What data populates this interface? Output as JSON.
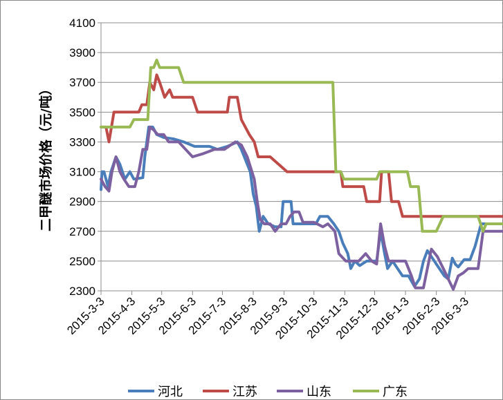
{
  "chart_data": {
    "type": "line",
    "title": "",
    "xlabel": "",
    "ylabel": "二甲醚市场价格（元/吨）",
    "ylim": [
      2300,
      4100
    ],
    "yticks": [
      2300,
      2500,
      2700,
      2900,
      3100,
      3300,
      3500,
      3700,
      3900,
      4100
    ],
    "xlim": [
      "2015-03-03",
      "2016-04-10"
    ],
    "xtick_labels": [
      "2015-3-3",
      "2015-4-3",
      "2015-5-3",
      "2015-6-3",
      "2015-7-3",
      "2015-8-3",
      "2015-9-3",
      "2015-10-3",
      "2015-11-3",
      "2015-12-3",
      "2016-1-3",
      "2016-2-3",
      "2016-3-3"
    ],
    "xtick_dates": [
      "2015-03-03",
      "2015-04-03",
      "2015-05-03",
      "2015-06-03",
      "2015-07-03",
      "2015-08-03",
      "2015-09-03",
      "2015-10-03",
      "2015-11-03",
      "2015-12-03",
      "2016-01-03",
      "2016-02-03",
      "2016-03-03"
    ],
    "grid": "horizontal",
    "legend_position": "bottom",
    "series": [
      {
        "name": "河北",
        "color": "#4a7ebb",
        "points": [
          [
            "2015-03-03",
            2980
          ],
          [
            "2015-03-04",
            3100
          ],
          [
            "2015-03-06",
            3100
          ],
          [
            "2015-03-10",
            3000
          ],
          [
            "2015-03-13",
            3100
          ],
          [
            "2015-03-18",
            3200
          ],
          [
            "2015-03-22",
            3150
          ],
          [
            "2015-03-27",
            3050
          ],
          [
            "2015-04-01",
            3100
          ],
          [
            "2015-04-05",
            3050
          ],
          [
            "2015-04-14",
            3060
          ],
          [
            "2015-04-16",
            3200
          ],
          [
            "2015-04-20",
            3400
          ],
          [
            "2015-04-24",
            3400
          ],
          [
            "2015-04-28",
            3350
          ],
          [
            "2015-05-05",
            3330
          ],
          [
            "2015-05-15",
            3320
          ],
          [
            "2015-05-25",
            3300
          ],
          [
            "2015-06-05",
            3270
          ],
          [
            "2015-06-20",
            3270
          ],
          [
            "2015-06-28",
            3250
          ],
          [
            "2015-07-08",
            3270
          ],
          [
            "2015-07-18",
            3300
          ],
          [
            "2015-07-22",
            3250
          ],
          [
            "2015-07-25",
            3200
          ],
          [
            "2015-07-31",
            3100
          ],
          [
            "2015-08-03",
            2950
          ],
          [
            "2015-08-06",
            2870
          ],
          [
            "2015-08-09",
            2700
          ],
          [
            "2015-08-13",
            2800
          ],
          [
            "2015-08-18",
            2750
          ],
          [
            "2015-08-25",
            2730
          ],
          [
            "2015-08-31",
            2730
          ],
          [
            "2015-09-02",
            2900
          ],
          [
            "2015-09-10",
            2900
          ],
          [
            "2015-09-12",
            2750
          ],
          [
            "2015-09-25",
            2750
          ],
          [
            "2015-10-05",
            2750
          ],
          [
            "2015-10-09",
            2800
          ],
          [
            "2015-10-17",
            2800
          ],
          [
            "2015-10-23",
            2750
          ],
          [
            "2015-10-28",
            2700
          ],
          [
            "2015-11-01",
            2620
          ],
          [
            "2015-11-06",
            2550
          ],
          [
            "2015-11-09",
            2450
          ],
          [
            "2015-11-13",
            2500
          ],
          [
            "2015-11-18",
            2470
          ],
          [
            "2015-11-25",
            2500
          ],
          [
            "2015-12-05",
            2500
          ],
          [
            "2015-12-09",
            2700
          ],
          [
            "2015-12-13",
            2550
          ],
          [
            "2015-12-16",
            2450
          ],
          [
            "2015-12-21",
            2500
          ],
          [
            "2015-12-26",
            2450
          ],
          [
            "2015-12-31",
            2400
          ],
          [
            "2016-01-06",
            2400
          ],
          [
            "2016-01-12",
            2330
          ],
          [
            "2016-01-17",
            2380
          ],
          [
            "2016-01-21",
            2500
          ],
          [
            "2016-01-25",
            2570
          ],
          [
            "2016-01-31",
            2510
          ],
          [
            "2016-02-05",
            2460
          ],
          [
            "2016-02-11",
            2400
          ],
          [
            "2016-02-15",
            2380
          ],
          [
            "2016-02-19",
            2520
          ],
          [
            "2016-02-22",
            2480
          ],
          [
            "2016-02-25",
            2460
          ],
          [
            "2016-03-02",
            2510
          ],
          [
            "2016-03-08",
            2510
          ],
          [
            "2016-03-13",
            2600
          ],
          [
            "2016-03-19",
            2750
          ],
          [
            "2016-04-10",
            2750
          ]
        ]
      },
      {
        "name": "江苏",
        "color": "#be4b48",
        "points": [
          [
            "2015-03-03",
            3400
          ],
          [
            "2015-03-08",
            3400
          ],
          [
            "2015-03-11",
            3300
          ],
          [
            "2015-03-16",
            3500
          ],
          [
            "2015-04-10",
            3500
          ],
          [
            "2015-04-13",
            3550
          ],
          [
            "2015-04-18",
            3550
          ],
          [
            "2015-04-21",
            3700
          ],
          [
            "2015-04-25",
            3650
          ],
          [
            "2015-04-28",
            3750
          ],
          [
            "2015-05-01",
            3700
          ],
          [
            "2015-05-06",
            3600
          ],
          [
            "2015-05-11",
            3650
          ],
          [
            "2015-05-14",
            3600
          ],
          [
            "2015-06-03",
            3600
          ],
          [
            "2015-06-08",
            3500
          ],
          [
            "2015-06-25",
            3500
          ],
          [
            "2015-07-08",
            3500
          ],
          [
            "2015-07-10",
            3600
          ],
          [
            "2015-07-18",
            3600
          ],
          [
            "2015-07-22",
            3450
          ],
          [
            "2015-07-30",
            3350
          ],
          [
            "2015-08-04",
            3300
          ],
          [
            "2015-08-08",
            3200
          ],
          [
            "2015-08-20",
            3200
          ],
          [
            "2015-09-06",
            3100
          ],
          [
            "2015-10-30",
            3100
          ],
          [
            "2015-11-01",
            3000
          ],
          [
            "2015-11-22",
            3000
          ],
          [
            "2015-11-25",
            2900
          ],
          [
            "2015-12-08",
            2900
          ],
          [
            "2015-12-10",
            3100
          ],
          [
            "2015-12-17",
            3100
          ],
          [
            "2015-12-20",
            2900
          ],
          [
            "2015-12-27",
            2900
          ],
          [
            "2015-12-31",
            2800
          ],
          [
            "2016-04-10",
            2800
          ]
        ]
      },
      {
        "name": "山东",
        "color": "#7d60a0",
        "points": [
          [
            "2015-03-03",
            3050
          ],
          [
            "2015-03-07",
            3000
          ],
          [
            "2015-03-11",
            2970
          ],
          [
            "2015-03-14",
            3100
          ],
          [
            "2015-03-18",
            3200
          ],
          [
            "2015-03-22",
            3100
          ],
          [
            "2015-03-26",
            3050
          ],
          [
            "2015-03-31",
            3000
          ],
          [
            "2015-04-06",
            3000
          ],
          [
            "2015-04-10",
            3100
          ],
          [
            "2015-04-14",
            3250
          ],
          [
            "2015-04-18",
            3250
          ],
          [
            "2015-04-21",
            3400
          ],
          [
            "2015-04-25",
            3380
          ],
          [
            "2015-04-29",
            3350
          ],
          [
            "2015-05-05",
            3350
          ],
          [
            "2015-05-10",
            3300
          ],
          [
            "2015-05-20",
            3300
          ],
          [
            "2015-05-27",
            3250
          ],
          [
            "2015-06-03",
            3200
          ],
          [
            "2015-06-13",
            3220
          ],
          [
            "2015-06-25",
            3250
          ],
          [
            "2015-07-05",
            3250
          ],
          [
            "2015-07-16",
            3300
          ],
          [
            "2015-07-22",
            3280
          ],
          [
            "2015-07-28",
            3200
          ],
          [
            "2015-08-04",
            3050
          ],
          [
            "2015-08-07",
            2900
          ],
          [
            "2015-08-10",
            2780
          ],
          [
            "2015-08-14",
            2750
          ],
          [
            "2015-08-20",
            2750
          ],
          [
            "2015-08-25",
            2700
          ],
          [
            "2015-08-31",
            2750
          ],
          [
            "2015-09-05",
            2750
          ],
          [
            "2015-09-09",
            2800
          ],
          [
            "2015-09-13",
            2830
          ],
          [
            "2015-09-18",
            2830
          ],
          [
            "2015-09-22",
            2760
          ],
          [
            "2015-10-03",
            2760
          ],
          [
            "2015-10-12",
            2730
          ],
          [
            "2015-10-17",
            2750
          ],
          [
            "2015-10-24",
            2700
          ],
          [
            "2015-10-28",
            2550
          ],
          [
            "2015-11-04",
            2500
          ],
          [
            "2015-11-10",
            2500
          ],
          [
            "2015-11-17",
            2500
          ],
          [
            "2015-11-24",
            2550
          ],
          [
            "2015-11-30",
            2500
          ],
          [
            "2015-12-05",
            2480
          ],
          [
            "2015-12-09",
            2750
          ],
          [
            "2015-12-13",
            2600
          ],
          [
            "2015-12-17",
            2500
          ],
          [
            "2016-01-03",
            2500
          ],
          [
            "2016-01-09",
            2400
          ],
          [
            "2016-01-13",
            2320
          ],
          [
            "2016-01-21",
            2320
          ],
          [
            "2016-01-25",
            2450
          ],
          [
            "2016-01-29",
            2580
          ],
          [
            "2016-02-04",
            2530
          ],
          [
            "2016-02-10",
            2450
          ],
          [
            "2016-02-15",
            2380
          ],
          [
            "2016-02-20",
            2310
          ],
          [
            "2016-02-25",
            2400
          ],
          [
            "2016-03-01",
            2420
          ],
          [
            "2016-03-06",
            2450
          ],
          [
            "2016-03-16",
            2450
          ],
          [
            "2016-03-21",
            2700
          ],
          [
            "2016-04-10",
            2700
          ]
        ]
      },
      {
        "name": "广东",
        "color": "#98b954",
        "points": [
          [
            "2015-03-03",
            3400
          ],
          [
            "2015-04-01",
            3400
          ],
          [
            "2015-04-05",
            3450
          ],
          [
            "2015-04-19",
            3450
          ],
          [
            "2015-04-22",
            3800
          ],
          [
            "2015-04-25",
            3800
          ],
          [
            "2015-04-28",
            3850
          ],
          [
            "2015-05-01",
            3800
          ],
          [
            "2015-05-20",
            3800
          ],
          [
            "2015-05-25",
            3700
          ],
          [
            "2015-10-22",
            3700
          ],
          [
            "2015-10-25",
            3100
          ],
          [
            "2015-10-30",
            3100
          ],
          [
            "2015-11-02",
            3050
          ],
          [
            "2015-12-05",
            3050
          ],
          [
            "2015-12-08",
            3100
          ],
          [
            "2016-01-05",
            3100
          ],
          [
            "2016-01-08",
            3000
          ],
          [
            "2016-01-16",
            3000
          ],
          [
            "2016-01-20",
            2700
          ],
          [
            "2016-02-03",
            2700
          ],
          [
            "2016-02-10",
            2800
          ],
          [
            "2016-03-16",
            2800
          ],
          [
            "2016-03-21",
            2700
          ],
          [
            "2016-03-24",
            2750
          ],
          [
            "2016-04-10",
            2750
          ]
        ]
      }
    ]
  }
}
